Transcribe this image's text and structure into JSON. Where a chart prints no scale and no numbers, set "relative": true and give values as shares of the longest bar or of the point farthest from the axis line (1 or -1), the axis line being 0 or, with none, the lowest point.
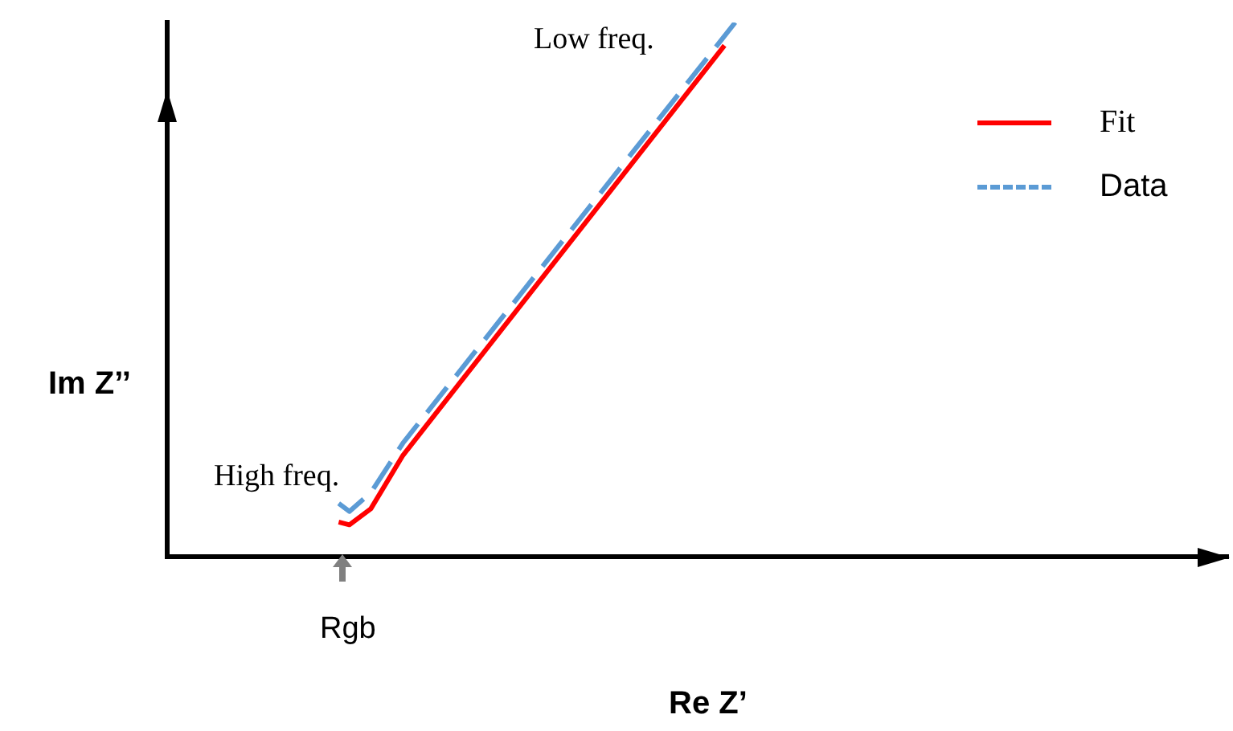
{
  "chart_data": {
    "type": "line",
    "relative": true,
    "xlabel": "Re Z’",
    "ylabel": "Im Z’’",
    "legend": "top right",
    "grid": false,
    "marker": "none",
    "categories": [
      null,
      null,
      null,
      null,
      null,
      null,
      null,
      null,
      null,
      null,
      null,
      null,
      null,
      null,
      null,
      null,
      null,
      null,
      null,
      null,
      null,
      null,
      null,
      null,
      null,
      null,
      null,
      null,
      null,
      null,
      null,
      null,
      null,
      null,
      null,
      null,
      null,
      null,
      null,
      null,
      null,
      null,
      null,
      null,
      null,
      null,
      null,
      null,
      null,
      null,
      null,
      null,
      null,
      null,
      null,
      null,
      null,
      null,
      null,
      null,
      null,
      null,
      null,
      null,
      null,
      null,
      null,
      null,
      null,
      null,
      null,
      null,
      null,
      null,
      null,
      null,
      null,
      null,
      null,
      null,
      null,
      null,
      null,
      null,
      null,
      null,
      null,
      null,
      null,
      null,
      null,
      null,
      null,
      null,
      null,
      null,
      null,
      null,
      null,
      null
    ],
    "series": [
      {
        "name": "Fit",
        "color": "#ff0000",
        "line_style": "solid",
        "values": [
          null,
          null,
          null,
          null,
          null,
          null,
          null,
          null,
          null,
          null,
          null,
          null,
          null,
          null,
          null,
          null,
          0.065,
          0.06,
          null,
          0.09,
          null,
          null,
          0.19,
          null,
          null,
          null,
          null,
          null,
          null,
          null,
          null,
          null,
          null,
          null,
          null,
          null,
          null,
          null,
          null,
          null,
          null,
          null,
          null,
          null,
          null,
          null,
          null,
          null,
          null,
          null,
          null,
          null,
          0.957,
          null,
          null,
          null,
          null,
          null,
          null,
          null,
          null,
          null,
          null,
          null,
          null,
          null,
          null,
          null,
          null,
          null,
          null,
          null,
          null,
          null,
          null,
          null,
          null,
          null,
          null,
          null,
          null,
          null,
          null,
          null,
          null,
          null,
          null,
          null,
          null,
          null,
          null,
          null,
          null,
          null,
          null,
          null,
          null,
          null,
          null,
          null
        ]
      },
      {
        "name": "Data",
        "color": "#5b9bd5",
        "line_style": "dashed",
        "values": [
          null,
          null,
          null,
          null,
          null,
          null,
          null,
          null,
          null,
          null,
          null,
          null,
          null,
          null,
          null,
          null,
          0.1,
          0.085,
          null,
          0.12,
          null,
          null,
          0.213,
          null,
          null,
          null,
          null,
          null,
          null,
          null,
          null,
          null,
          null,
          null,
          null,
          null,
          null,
          null,
          null,
          null,
          null,
          null,
          null,
          null,
          null,
          null,
          null,
          null,
          null,
          null,
          null,
          null,
          null,
          1,
          null,
          null,
          null,
          null,
          null,
          null,
          null,
          null,
          null,
          null,
          null,
          null,
          null,
          null,
          null,
          null,
          null,
          null,
          null,
          null,
          null,
          null,
          null,
          null,
          null,
          null,
          null,
          null,
          null,
          null,
          null,
          null,
          null,
          null,
          null,
          null,
          null,
          null,
          null,
          null,
          null,
          null,
          null,
          null,
          null,
          null
        ]
      }
    ],
    "annotations": [
      "Low freq.",
      "High freq.",
      "Rgb"
    ]
  }
}
